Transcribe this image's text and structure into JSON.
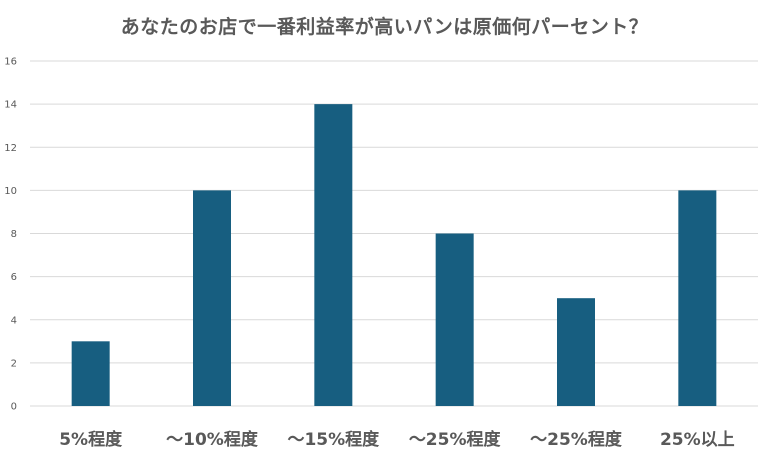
{
  "chart_data": {
    "type": "bar",
    "title": "あなたのお店で一番利益率が高いパンは原価何パーセント？",
    "xlabel": "",
    "ylabel": "",
    "categories": [
      "5%程度",
      "～10%程度",
      "～15%程度",
      "～25%程度",
      "～25%程度",
      "25%以上"
    ],
    "values": [
      3,
      10,
      14,
      8,
      5,
      10
    ],
    "ylim": [
      0,
      16
    ],
    "yticks": [
      0,
      2,
      4,
      6,
      8,
      10,
      12,
      14,
      16
    ],
    "grid": true,
    "legend": "none",
    "bar_color": "#175e80",
    "grid_color": "#d9d9d9",
    "text_color": "#595959"
  }
}
